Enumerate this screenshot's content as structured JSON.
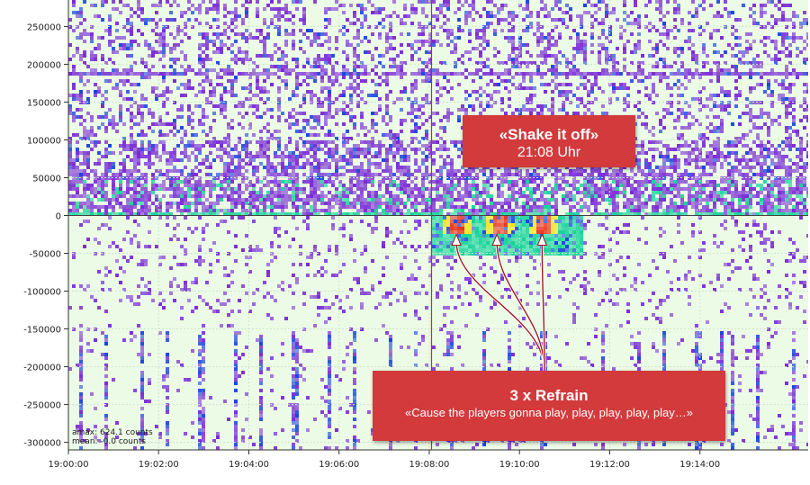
{
  "chart_data": {
    "type": "heatmap",
    "title": "",
    "xlabel": "",
    "ylabel": "",
    "x_ticks": [
      "19:00:00",
      "19:02:00",
      "19:04:00",
      "19:06:00",
      "19:08:00",
      "19:10:00",
      "19:12:00",
      "19:14:00"
    ],
    "x_range_minutes": [
      0,
      16.4
    ],
    "y_ticks": [
      250000,
      200000,
      150000,
      100000,
      50000,
      0,
      -50000,
      -100000,
      -150000,
      -200000,
      -250000,
      -300000
    ],
    "y_range": [
      -310000,
      285000
    ],
    "stats": {
      "amax": "amax: 624.1 counts",
      "mean": "mean: -0.0 counts"
    },
    "marker_time": "19:08:00",
    "colors": {
      "background": "#ebfbe6",
      "low": "#7a2cd6",
      "mid": "#1a44e0",
      "high": "#16d29a",
      "peak": "#f5e21a",
      "hot": "#e8311c",
      "callout": "#d23a3c",
      "marker": "#c8283a"
    },
    "peaks_minutes": [
      8.6,
      9.5,
      10.5
    ],
    "annotations": {
      "song": {
        "title": "«Shake it off»",
        "subtitle": "21:08 Uhr"
      },
      "refrain": {
        "title": "3 x Refrain",
        "subtitle": "«Cause the players gonna play, play, play, play, play…»"
      }
    }
  }
}
